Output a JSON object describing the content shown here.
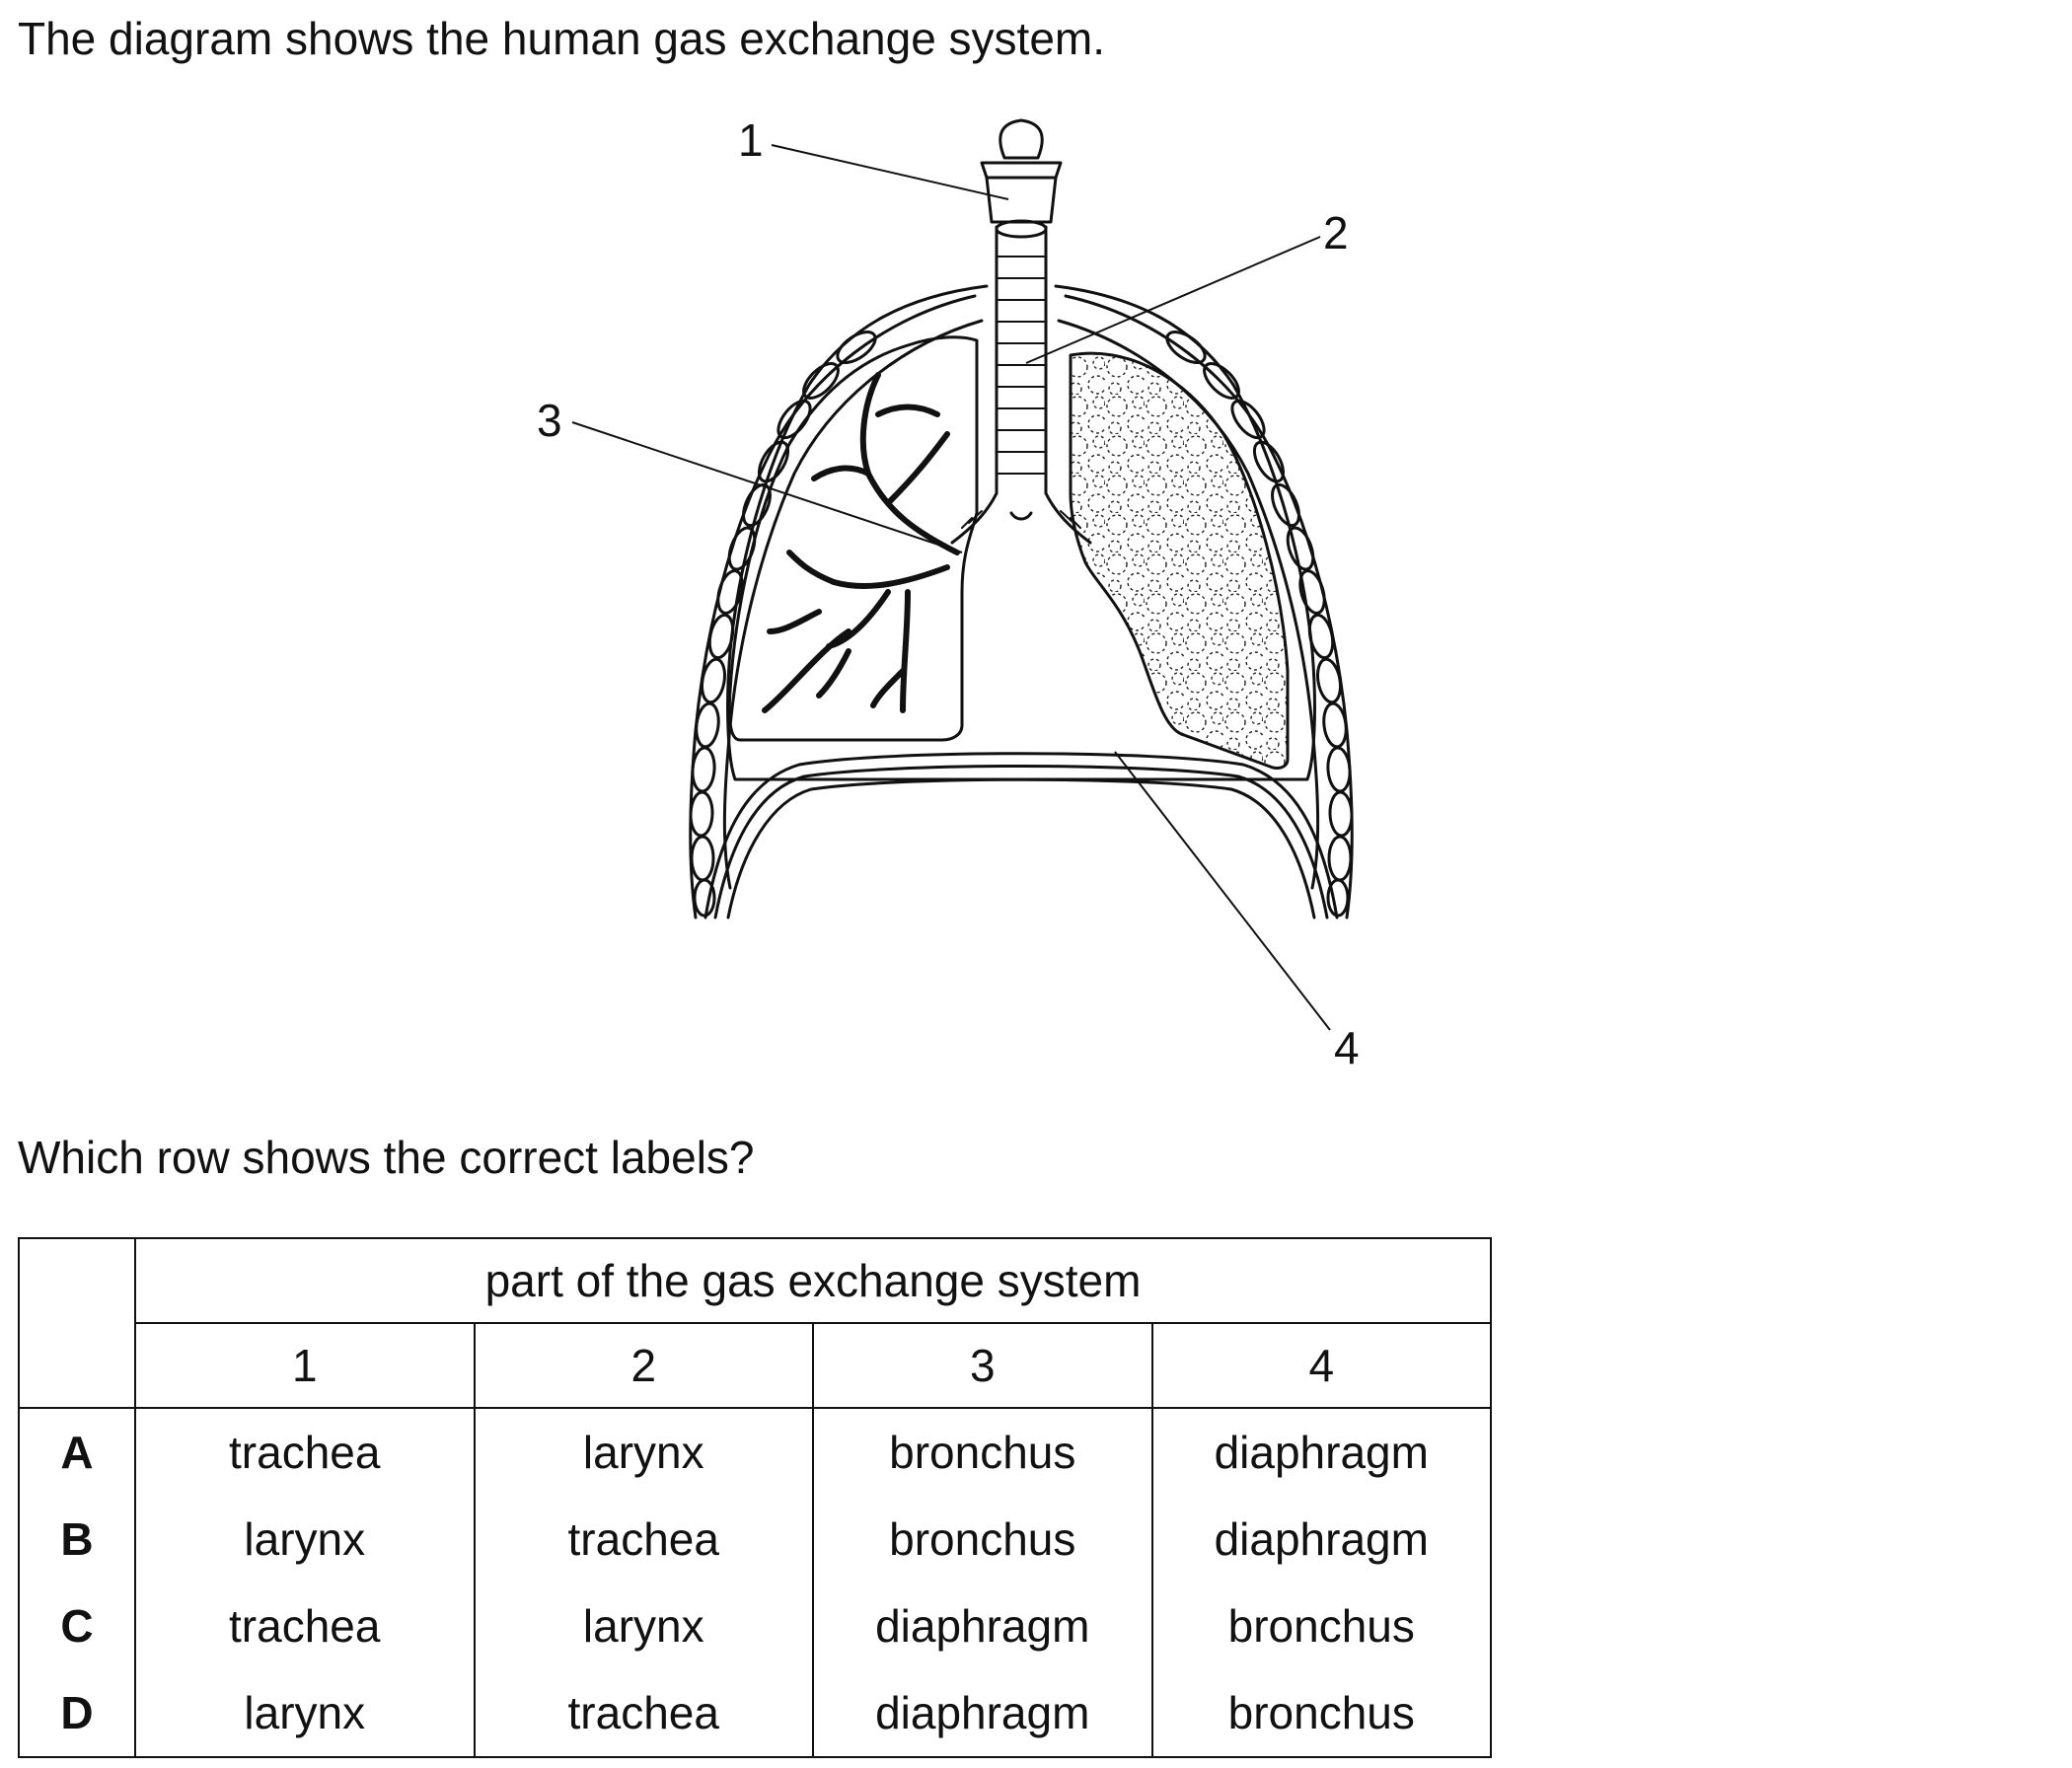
{
  "question": {
    "intro": "The diagram shows the human gas exchange system.",
    "prompt": "Which row shows the correct labels?"
  },
  "diagram": {
    "labels": [
      "1",
      "2",
      "3",
      "4"
    ]
  },
  "table": {
    "group_header": "part of the gas exchange system",
    "column_headers": [
      "1",
      "2",
      "3",
      "4"
    ],
    "rows": [
      {
        "letter": "A",
        "cells": [
          "trachea",
          "larynx",
          "bronchus",
          "diaphragm"
        ]
      },
      {
        "letter": "B",
        "cells": [
          "larynx",
          "trachea",
          "bronchus",
          "diaphragm"
        ]
      },
      {
        "letter": "C",
        "cells": [
          "trachea",
          "larynx",
          "diaphragm",
          "bronchus"
        ]
      },
      {
        "letter": "D",
        "cells": [
          "larynx",
          "trachea",
          "diaphragm",
          "bronchus"
        ]
      }
    ]
  }
}
